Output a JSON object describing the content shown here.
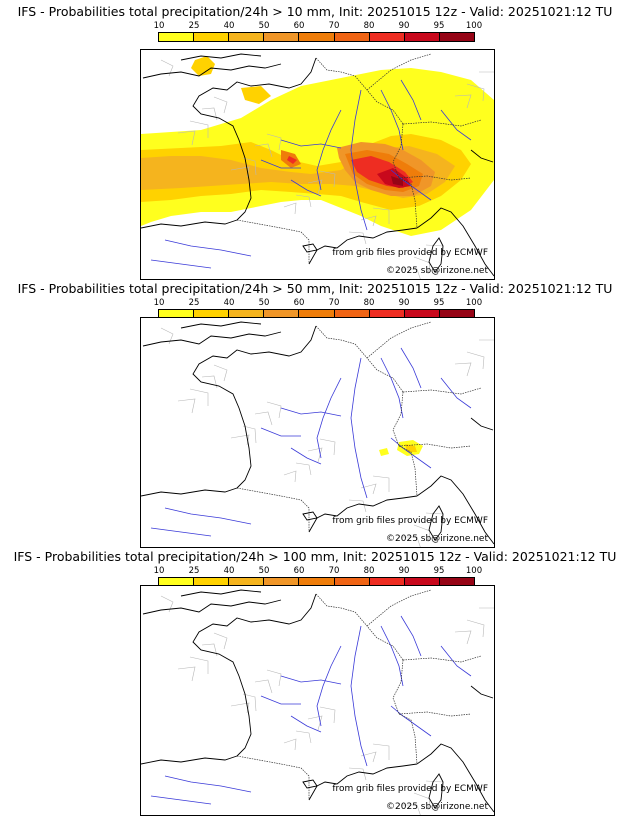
{
  "colorbar": {
    "ticks": [
      "10",
      "25",
      "40",
      "50",
      "60",
      "70",
      "80",
      "90",
      "95",
      "100"
    ],
    "colors": [
      "#ffff1e",
      "#ffd200",
      "#f5b41e",
      "#f09628",
      "#ef7d0a",
      "#f06414",
      "#ee2d22",
      "#c8081c",
      "#960416",
      "#640313"
    ]
  },
  "panels": [
    {
      "title": "IFS - Probabilities total precipitation/24h > 10 mm, Init: 20251015 12z - Valid: 20251021:12 TU",
      "credit_grib": "from grib files provided by ECMWF",
      "credit_site": "©2025 sb@irizone.net",
      "precip_level": "high"
    },
    {
      "title": "IFS - Probabilities total precipitation/24h > 50 mm, Init: 20251015 12z - Valid: 20251021:12 TU",
      "credit_grib": "from grib files provided by ECMWF",
      "credit_site": "©2025 sb@irizone.net",
      "precip_level": "low"
    },
    {
      "title": "IFS - Probabilities total precipitation/24h > 100 mm, Init: 20251015 12z - Valid: 20251021:12 TU",
      "credit_grib": "from grib files provided by ECMWF",
      "credit_site": "©2025 sb@irizone.net",
      "precip_level": "none"
    }
  ]
}
